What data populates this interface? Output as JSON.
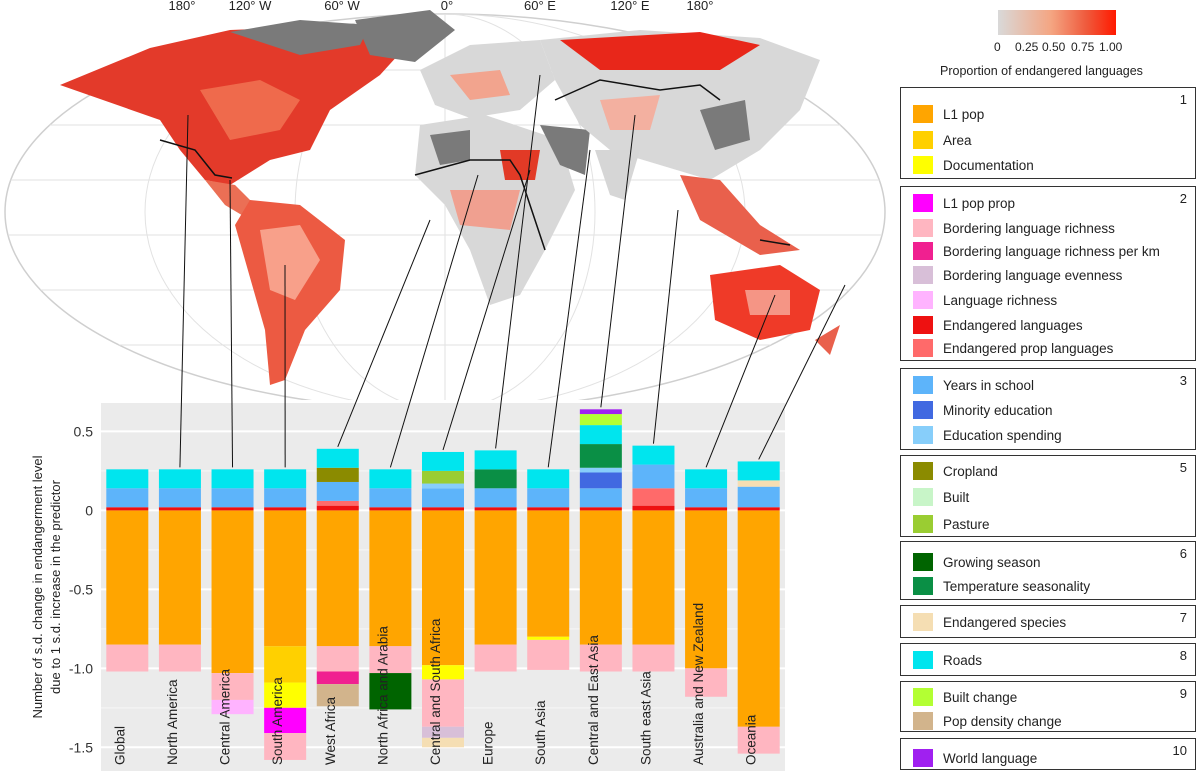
{
  "map": {
    "lon_labels": [
      "180°",
      "120° W",
      "60° W",
      "0°",
      "60° E",
      "120° E",
      "180°"
    ],
    "gradient": {
      "title": "Proportion of endangered languages",
      "ticks": [
        "0",
        "0.25",
        "0.50",
        "0.75",
        "1.00"
      ],
      "colors": [
        "#d9d9d9",
        "#ff1a00"
      ]
    }
  },
  "chart_data": {
    "type": "bar",
    "stacked": true,
    "title": "",
    "xlabel": "",
    "ylabel": "Number of s.d. change in endangerment level due to 1 s.d. increase in the predictor",
    "ylim": [
      -1.65,
      0.68
    ],
    "yticks": [
      0.5,
      0,
      -0.5,
      -1.0,
      -1.5
    ],
    "ytick_labels": [
      "0.5",
      "0",
      "-0.5",
      "-1.0",
      "-1.5"
    ],
    "grid": true,
    "categories": [
      "Global",
      "North America",
      "Central America",
      "South America",
      "West Africa",
      "North Africa and Arabia",
      "Central and South Africa",
      "Europe",
      "South Asia",
      "Central and East Asia",
      "South east Asia",
      "Australia and New Zealand",
      "Oceania"
    ],
    "series": [
      {
        "name": "L1 pop",
        "color": "#FFA500",
        "values": [
          -0.85,
          -0.85,
          -1.03,
          -0.86,
          -0.86,
          -0.86,
          -0.98,
          -0.85,
          -0.8,
          -0.85,
          -0.85,
          -1.0,
          -1.37
        ]
      },
      {
        "name": "Area",
        "color": "#FFD000",
        "values": [
          0,
          0,
          0,
          -0.23,
          0,
          0,
          0,
          0,
          0,
          0,
          0,
          0,
          0
        ]
      },
      {
        "name": "Documentation",
        "color": "#FFFF00",
        "values": [
          0,
          0,
          0,
          -0.16,
          0,
          0,
          -0.09,
          0,
          -0.02,
          0,
          0,
          0,
          0
        ]
      },
      {
        "name": "L1 pop prop",
        "color": "#FF00FF",
        "values": [
          0,
          0,
          0,
          -0.16,
          0,
          0,
          0,
          0,
          0,
          0,
          0,
          0,
          0
        ]
      },
      {
        "name": "Bordering language richness",
        "color": "#FFB6C1",
        "values": [
          -0.17,
          -0.17,
          -0.17,
          -0.17,
          -0.16,
          -0.17,
          -0.3,
          -0.17,
          -0.19,
          -0.17,
          -0.17,
          -0.18,
          -0.17
        ]
      },
      {
        "name": "Bordering language richness per km",
        "color": "#F02090",
        "values": [
          0,
          0,
          0,
          0,
          -0.08,
          0,
          0,
          0,
          0,
          0,
          0,
          0,
          0
        ]
      },
      {
        "name": "Bordering language evenness",
        "color": "#D8BFD8",
        "values": [
          0,
          0,
          0,
          0,
          0,
          0,
          -0.07,
          0,
          0,
          0,
          0,
          0,
          0
        ]
      },
      {
        "name": "Language richness",
        "color": "#FFB3FF",
        "values": [
          0,
          0,
          -0.09,
          0,
          0,
          0,
          0,
          0,
          0,
          0,
          0,
          0,
          0
        ]
      },
      {
        "name": "Endangered languages",
        "color": "#EE1111",
        "values": [
          0.02,
          0.02,
          0.02,
          0.02,
          0.03,
          0.02,
          0.02,
          0.02,
          0.02,
          0.02,
          0.03,
          0.02,
          0.02
        ]
      },
      {
        "name": "Endangered prop languages",
        "color": "#FF6A6A",
        "values": [
          0,
          0,
          0,
          0,
          0.03,
          0,
          0,
          0,
          0,
          0,
          0.11,
          0,
          0
        ]
      },
      {
        "name": "Years in school",
        "color": "#5DB4FA",
        "values": [
          0.12,
          0.12,
          0.12,
          0.12,
          0.12,
          0.12,
          0.12,
          0.12,
          0.12,
          0.12,
          0.15,
          0.12,
          0.13
        ]
      },
      {
        "name": "Minority education",
        "color": "#4169E1",
        "values": [
          0,
          0,
          0,
          0,
          0,
          0,
          0,
          0,
          0,
          0.1,
          0,
          0,
          0
        ]
      },
      {
        "name": "Education spending",
        "color": "#87CEFA",
        "values": [
          0,
          0,
          0,
          0,
          0,
          0,
          0.03,
          0,
          0,
          0.03,
          0,
          0,
          0
        ]
      },
      {
        "name": "Cropland",
        "color": "#8B8B00",
        "values": [
          0,
          0,
          0,
          0,
          0.09,
          0,
          0,
          0,
          0,
          0,
          0,
          0,
          0
        ]
      },
      {
        "name": "Built",
        "color": "#C8F5C8",
        "values": [
          0,
          0,
          0,
          0,
          0,
          0,
          0,
          0,
          0,
          0,
          0,
          0,
          0
        ]
      },
      {
        "name": "Pasture",
        "color": "#9ACD32",
        "values": [
          0,
          0,
          0,
          0,
          0,
          0,
          0.08,
          0,
          0,
          0,
          0,
          0,
          0
        ]
      },
      {
        "name": "Growing season",
        "color": "#006400",
        "values": [
          0,
          0,
          0,
          0,
          0,
          -0.23,
          0,
          0,
          0,
          0,
          0,
          0,
          0
        ]
      },
      {
        "name": "Temperature seasonality",
        "color": "#0A8F45",
        "values": [
          0,
          0,
          0,
          0,
          0,
          0,
          0,
          0.12,
          0,
          0.15,
          0,
          0,
          0
        ]
      },
      {
        "name": "Endangered species",
        "color": "#F5DEB3",
        "values": [
          0,
          0,
          0,
          0,
          0,
          0,
          -0.06,
          0,
          0,
          0,
          0,
          0,
          0.04
        ]
      },
      {
        "name": "Roads",
        "color": "#00E5EE",
        "values": [
          0.12,
          0.12,
          0.12,
          0.12,
          0.12,
          0.12,
          0.12,
          0.12,
          0.12,
          0.12,
          0.12,
          0.12,
          0.12
        ]
      },
      {
        "name": "Built change",
        "color": "#B3FF33",
        "values": [
          0,
          0,
          0,
          0,
          0,
          0,
          0,
          0,
          0,
          0.07,
          0,
          0,
          0
        ]
      },
      {
        "name": "Pop density change",
        "color": "#D2B48C",
        "values": [
          0,
          0,
          0,
          0,
          -0.14,
          0,
          0,
          0,
          0,
          0,
          0,
          0,
          0
        ]
      },
      {
        "name": "World language",
        "color": "#A020F0",
        "values": [
          0,
          0,
          0,
          0,
          0,
          0,
          0,
          0,
          0,
          0.03,
          0,
          0,
          0
        ]
      }
    ],
    "legend": {
      "placement": "right",
      "groups": [
        {
          "number": "1",
          "items": [
            "L1 pop",
            "Area",
            "Documentation"
          ]
        },
        {
          "number": "2",
          "items": [
            "L1 pop prop",
            "Bordering language richness",
            "Bordering language richness per km",
            "Bordering language evenness",
            "Language richness",
            "Endangered languages",
            "Endangered prop languages"
          ]
        },
        {
          "number": "3",
          "items": [
            "Years in school",
            "Minority education",
            "Education spending"
          ]
        },
        {
          "number": "5",
          "items": [
            "Cropland",
            "Built",
            "Pasture"
          ]
        },
        {
          "number": "6",
          "items": [
            "Growing season",
            "Temperature seasonality"
          ]
        },
        {
          "number": "7",
          "items": [
            "Endangered species"
          ]
        },
        {
          "number": "8",
          "items": [
            "Roads"
          ]
        },
        {
          "number": "9",
          "items": [
            "Built change",
            "Pop density change"
          ]
        },
        {
          "number": "10",
          "items": [
            "World language"
          ]
        }
      ]
    }
  }
}
